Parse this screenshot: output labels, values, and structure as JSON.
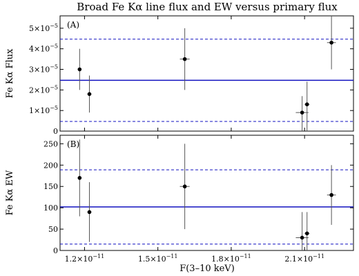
{
  "chart_data": {
    "title": "Broad Fe Kα line flux and EW versus primary flux",
    "xlabel": "F(3–10 keV)",
    "x_scale": 1e-11,
    "x_ticks": [
      1.2,
      1.5,
      1.8,
      2.1
    ],
    "x_tick_labels": [
      "1.2×10",
      "1.5×10",
      "1.8×10",
      "2.1×10"
    ],
    "x_tick_exp": "−11",
    "xlim": [
      1.1,
      2.3
    ],
    "panels": [
      {
        "type": "scatter",
        "panel_label": "(A)",
        "ylabel": "Fe Kα Flux",
        "ylim": [
          0,
          5.6
        ],
        "y_scale": 1e-05,
        "y_ticks": [
          0,
          1,
          2,
          3,
          4,
          5
        ],
        "y_tick_labels": [
          "0",
          "1×10",
          "2×10",
          "3×10",
          "4×10",
          "5×10"
        ],
        "y_tick_exp": "−5",
        "mean": 2.47,
        "bounds": [
          0.47,
          4.47
        ],
        "points": [
          {
            "x": 1.18,
            "xerr": 0.008,
            "y": 3.0,
            "ylo": 2.0,
            "yhi": 4.0
          },
          {
            "x": 1.22,
            "xerr": 0.008,
            "y": 1.8,
            "ylo": 0.9,
            "yhi": 2.7
          },
          {
            "x": 1.61,
            "xerr": 0.02,
            "y": 3.5,
            "ylo": 2.0,
            "yhi": 5.0
          },
          {
            "x": 2.09,
            "xerr": 0.026,
            "y": 0.9,
            "ylo": 0.0,
            "yhi": 1.7
          },
          {
            "x": 2.11,
            "xerr": 0.01,
            "y": 1.3,
            "ylo": 0.0,
            "yhi": 2.4
          },
          {
            "x": 2.21,
            "xerr": 0.018,
            "y": 4.3,
            "ylo": 3.0,
            "yhi": 5.6
          }
        ]
      },
      {
        "type": "scatter",
        "panel_label": "(B)",
        "ylabel": "Fe Kα EW",
        "ylim": [
          0,
          270
        ],
        "y_ticks": [
          0,
          50,
          100,
          150,
          200,
          250
        ],
        "y_tick_labels": [
          "0",
          "50",
          "100",
          "150",
          "200",
          "250"
        ],
        "mean": 102,
        "bounds": [
          15,
          189
        ],
        "points": [
          {
            "x": 1.18,
            "xerr": 0.008,
            "y": 170,
            "ylo": 80,
            "yhi": 260
          },
          {
            "x": 1.22,
            "xerr": 0.008,
            "y": 90,
            "ylo": 20,
            "yhi": 160
          },
          {
            "x": 1.61,
            "xerr": 0.02,
            "y": 150,
            "ylo": 50,
            "yhi": 250
          },
          {
            "x": 2.09,
            "xerr": 0.026,
            "y": 30,
            "ylo": 0,
            "yhi": 90
          },
          {
            "x": 2.11,
            "xerr": 0.01,
            "y": 40,
            "ylo": 0,
            "yhi": 90
          },
          {
            "x": 2.21,
            "xerr": 0.018,
            "y": 130,
            "ylo": 60,
            "yhi": 200
          }
        ]
      }
    ],
    "colors": {
      "line": "#1010c0",
      "point": "#000000",
      "errorbar": "#555555"
    },
    "grid": false
  }
}
